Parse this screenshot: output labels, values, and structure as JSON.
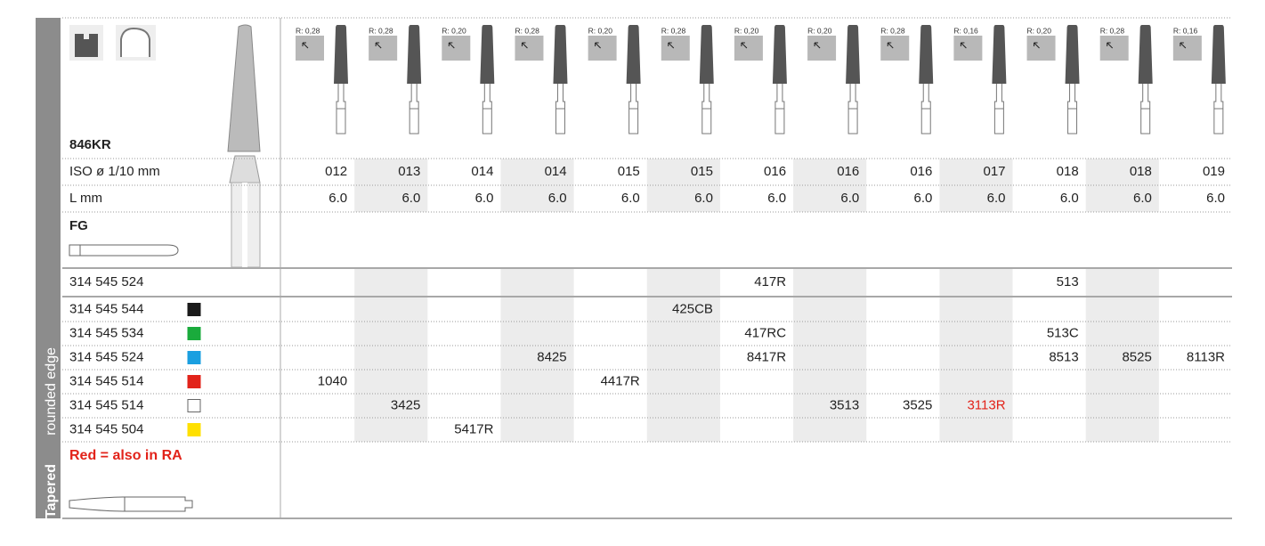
{
  "product": {
    "name": "846KR",
    "side_title": "Tapered",
    "side_label": "rounded edge"
  },
  "labels": {
    "iso": "ISO ø 1/10 mm",
    "length": "L mm",
    "shank": "FG",
    "note": "Red = also in RA"
  },
  "columns": [
    {
      "radius": "R: 0,28",
      "iso": "012",
      "length": "6.0"
    },
    {
      "radius": "R: 0,28",
      "iso": "013",
      "length": "6.0"
    },
    {
      "radius": "R: 0,20",
      "iso": "014",
      "length": "6.0"
    },
    {
      "radius": "R: 0,28",
      "iso": "014",
      "length": "6.0"
    },
    {
      "radius": "R: 0,20",
      "iso": "015",
      "length": "6.0"
    },
    {
      "radius": "R: 0,28",
      "iso": "015",
      "length": "6.0"
    },
    {
      "radius": "R: 0,20",
      "iso": "016",
      "length": "6.0"
    },
    {
      "radius": "R: 0,20",
      "iso": "016",
      "length": "6.0"
    },
    {
      "radius": "R: 0,28",
      "iso": "016",
      "length": "6.0"
    },
    {
      "radius": "R: 0,16",
      "iso": "017",
      "length": "6.0"
    },
    {
      "radius": "R: 0,20",
      "iso": "018",
      "length": "6.0"
    },
    {
      "radius": "R: 0,28",
      "iso": "018",
      "length": "6.0"
    },
    {
      "radius": "R: 0,16",
      "iso": "019",
      "length": "6.0"
    }
  ],
  "rows": [
    {
      "code": "314 545 524",
      "cells": [
        null,
        null,
        null,
        null,
        null,
        null,
        "417R",
        null,
        null,
        null,
        "513",
        null,
        null
      ]
    },
    {
      "code": "314 545 544",
      "swatch": "#1a1a1a",
      "cells": [
        null,
        null,
        null,
        null,
        null,
        "425CB",
        null,
        null,
        null,
        null,
        null,
        null,
        null
      ]
    },
    {
      "code": "314 545 534",
      "swatch": "#1aab3c",
      "cells": [
        null,
        null,
        null,
        null,
        null,
        null,
        "417RC",
        null,
        null,
        null,
        "513C",
        null,
        null
      ]
    },
    {
      "code": "314 545 524",
      "swatch": "#1a9fe0",
      "cells": [
        null,
        null,
        null,
        "8425",
        null,
        null,
        "8417R",
        null,
        null,
        null,
        "8513",
        "8525",
        "8113R"
      ]
    },
    {
      "code": "314 545 514",
      "swatch": "#e2231a",
      "cells": [
        "1040",
        null,
        null,
        null,
        "4417R",
        null,
        null,
        null,
        null,
        null,
        null,
        null,
        null
      ]
    },
    {
      "code": "314 545 514",
      "swatch": "#ffffff",
      "cells": [
        null,
        "3425",
        null,
        null,
        null,
        null,
        null,
        "3513",
        "3525",
        {
          "text": "3113R",
          "color": "#e2231a"
        },
        null,
        null,
        null
      ]
    },
    {
      "code": "314 545 504",
      "swatch": "#ffe000",
      "cells": [
        null,
        null,
        "5417R",
        null,
        null,
        null,
        null,
        null,
        null,
        null,
        null,
        null,
        null
      ]
    }
  ]
}
